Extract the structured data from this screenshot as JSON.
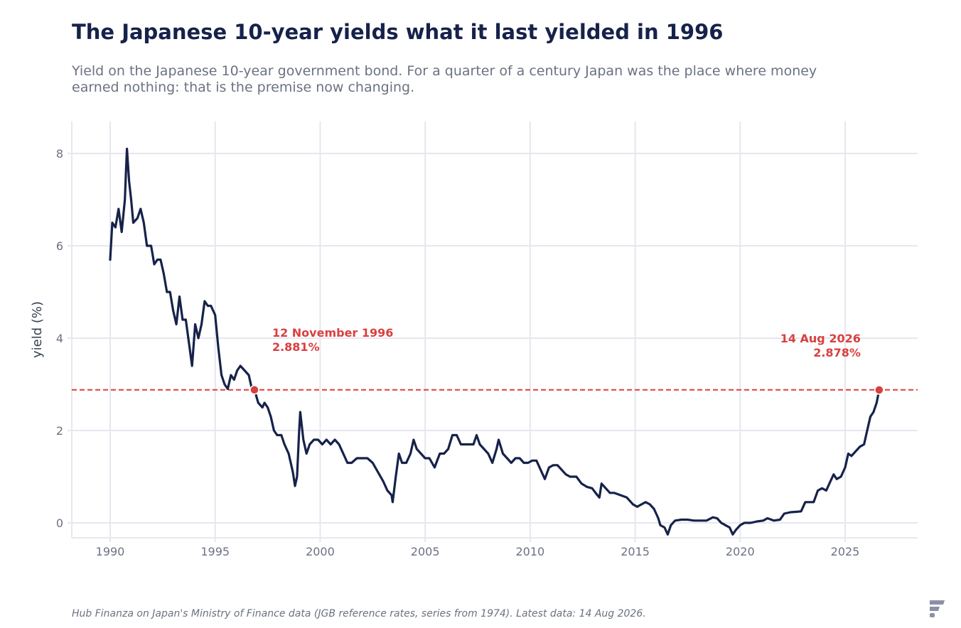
{
  "header": {
    "title": "The Japanese 10-year yields what it last yielded in 1996",
    "subtitle": "Yield on the Japanese 10-year government bond. For a quarter of a century Japan was the place where money earned nothing: that is the premise now changing."
  },
  "footer": {
    "source": "Hub Finanza on Japan's Ministry of Finance data (JGB reference rates, series from 1974). Latest data: 14 Aug 2026."
  },
  "logo": {
    "icon": "hub-finanza-logo-icon",
    "color": "#8b90a6"
  },
  "colors": {
    "line": "#16224a",
    "accent": "#d9403f",
    "grid": "#e6e7ef",
    "text": "#6b7280"
  },
  "chart_data": {
    "type": "line",
    "title": "The Japanese 10-year yields what it last yielded in 1996",
    "xlabel": "",
    "ylabel": "yield (%)",
    "xlim": [
      1988.2,
      2028.5
    ],
    "ylim": [
      -0.3,
      8.7
    ],
    "xticks": [
      1990,
      1995,
      2000,
      2005,
      2010,
      2015,
      2020,
      2025
    ],
    "yticks": [
      0,
      2,
      4,
      6,
      8
    ],
    "grid": true,
    "series": [
      {
        "values": [
          [
            1990.0,
            5.7
          ],
          [
            1990.1,
            6.5
          ],
          [
            1990.25,
            6.4
          ],
          [
            1990.4,
            6.8
          ],
          [
            1990.55,
            6.3
          ],
          [
            1990.7,
            7.0
          ],
          [
            1990.75,
            7.6
          ],
          [
            1990.8,
            8.1
          ],
          [
            1990.9,
            7.4
          ],
          [
            1991.0,
            7.0
          ],
          [
            1991.1,
            6.5
          ],
          [
            1991.3,
            6.6
          ],
          [
            1991.45,
            6.8
          ],
          [
            1991.6,
            6.5
          ],
          [
            1991.75,
            6.0
          ],
          [
            1991.95,
            6.0
          ],
          [
            1992.1,
            5.6
          ],
          [
            1992.25,
            5.7
          ],
          [
            1992.4,
            5.7
          ],
          [
            1992.55,
            5.4
          ],
          [
            1992.7,
            5.0
          ],
          [
            1992.85,
            5.0
          ],
          [
            1993.0,
            4.6
          ],
          [
            1993.15,
            4.3
          ],
          [
            1993.3,
            4.9
          ],
          [
            1993.45,
            4.4
          ],
          [
            1993.6,
            4.4
          ],
          [
            1993.75,
            3.9
          ],
          [
            1993.9,
            3.4
          ],
          [
            1994.05,
            4.3
          ],
          [
            1994.2,
            4.0
          ],
          [
            1994.35,
            4.3
          ],
          [
            1994.5,
            4.8
          ],
          [
            1994.65,
            4.7
          ],
          [
            1994.8,
            4.7
          ],
          [
            1995.0,
            4.5
          ],
          [
            1995.15,
            3.8
          ],
          [
            1995.3,
            3.2
          ],
          [
            1995.45,
            3.0
          ],
          [
            1995.6,
            2.9
          ],
          [
            1995.75,
            3.2
          ],
          [
            1995.9,
            3.1
          ],
          [
            1996.05,
            3.3
          ],
          [
            1996.2,
            3.4
          ],
          [
            1996.4,
            3.3
          ],
          [
            1996.6,
            3.2
          ],
          [
            1996.75,
            2.9
          ],
          [
            1996.87,
            2.881
          ],
          [
            1997.05,
            2.6
          ],
          [
            1997.25,
            2.5
          ],
          [
            1997.35,
            2.6
          ],
          [
            1997.5,
            2.5
          ],
          [
            1997.65,
            2.3
          ],
          [
            1997.8,
            2.0
          ],
          [
            1997.95,
            1.9
          ],
          [
            1998.15,
            1.9
          ],
          [
            1998.3,
            1.7
          ],
          [
            1998.5,
            1.5
          ],
          [
            1998.7,
            1.1
          ],
          [
            1998.8,
            0.8
          ],
          [
            1998.9,
            1.0
          ],
          [
            1999.0,
            2.0
          ],
          [
            1999.05,
            2.4
          ],
          [
            1999.2,
            1.8
          ],
          [
            1999.35,
            1.5
          ],
          [
            1999.5,
            1.7
          ],
          [
            1999.7,
            1.8
          ],
          [
            1999.9,
            1.8
          ],
          [
            2000.1,
            1.7
          ],
          [
            2000.3,
            1.8
          ],
          [
            2000.5,
            1.7
          ],
          [
            2000.7,
            1.8
          ],
          [
            2000.9,
            1.7
          ],
          [
            2001.1,
            1.5
          ],
          [
            2001.3,
            1.3
          ],
          [
            2001.5,
            1.3
          ],
          [
            2001.75,
            1.4
          ],
          [
            2002.0,
            1.4
          ],
          [
            2002.25,
            1.4
          ],
          [
            2002.5,
            1.3
          ],
          [
            2002.75,
            1.1
          ],
          [
            2003.0,
            0.9
          ],
          [
            2003.2,
            0.7
          ],
          [
            2003.4,
            0.6
          ],
          [
            2003.45,
            0.45
          ],
          [
            2003.6,
            1.0
          ],
          [
            2003.75,
            1.5
          ],
          [
            2003.9,
            1.3
          ],
          [
            2004.1,
            1.3
          ],
          [
            2004.3,
            1.5
          ],
          [
            2004.45,
            1.8
          ],
          [
            2004.6,
            1.6
          ],
          [
            2004.8,
            1.5
          ],
          [
            2005.0,
            1.4
          ],
          [
            2005.2,
            1.4
          ],
          [
            2005.45,
            1.2
          ],
          [
            2005.7,
            1.5
          ],
          [
            2005.9,
            1.5
          ],
          [
            2006.1,
            1.6
          ],
          [
            2006.3,
            1.9
          ],
          [
            2006.5,
            1.9
          ],
          [
            2006.7,
            1.7
          ],
          [
            2006.9,
            1.7
          ],
          [
            2007.1,
            1.7
          ],
          [
            2007.3,
            1.7
          ],
          [
            2007.45,
            1.9
          ],
          [
            2007.6,
            1.7
          ],
          [
            2007.8,
            1.6
          ],
          [
            2008.0,
            1.5
          ],
          [
            2008.2,
            1.3
          ],
          [
            2008.4,
            1.6
          ],
          [
            2008.5,
            1.8
          ],
          [
            2008.7,
            1.5
          ],
          [
            2008.9,
            1.4
          ],
          [
            2009.1,
            1.3
          ],
          [
            2009.3,
            1.4
          ],
          [
            2009.5,
            1.4
          ],
          [
            2009.7,
            1.3
          ],
          [
            2009.9,
            1.3
          ],
          [
            2010.1,
            1.35
          ],
          [
            2010.3,
            1.35
          ],
          [
            2010.5,
            1.15
          ],
          [
            2010.7,
            0.95
          ],
          [
            2010.9,
            1.2
          ],
          [
            2011.1,
            1.25
          ],
          [
            2011.3,
            1.25
          ],
          [
            2011.5,
            1.15
          ],
          [
            2011.7,
            1.05
          ],
          [
            2011.9,
            1.0
          ],
          [
            2012.2,
            1.0
          ],
          [
            2012.45,
            0.85
          ],
          [
            2012.7,
            0.78
          ],
          [
            2012.95,
            0.75
          ],
          [
            2013.2,
            0.6
          ],
          [
            2013.3,
            0.55
          ],
          [
            2013.4,
            0.85
          ],
          [
            2013.6,
            0.75
          ],
          [
            2013.8,
            0.65
          ],
          [
            2014.0,
            0.65
          ],
          [
            2014.3,
            0.6
          ],
          [
            2014.6,
            0.55
          ],
          [
            2014.9,
            0.4
          ],
          [
            2015.1,
            0.35
          ],
          [
            2015.3,
            0.4
          ],
          [
            2015.5,
            0.45
          ],
          [
            2015.7,
            0.4
          ],
          [
            2015.9,
            0.3
          ],
          [
            2016.1,
            0.1
          ],
          [
            2016.2,
            -0.05
          ],
          [
            2016.4,
            -0.1
          ],
          [
            2016.55,
            -0.25
          ],
          [
            2016.7,
            -0.05
          ],
          [
            2016.9,
            0.05
          ],
          [
            2017.2,
            0.07
          ],
          [
            2017.5,
            0.07
          ],
          [
            2017.8,
            0.05
          ],
          [
            2018.1,
            0.05
          ],
          [
            2018.4,
            0.05
          ],
          [
            2018.7,
            0.12
          ],
          [
            2018.9,
            0.1
          ],
          [
            2019.1,
            0.0
          ],
          [
            2019.3,
            -0.05
          ],
          [
            2019.5,
            -0.1
          ],
          [
            2019.65,
            -0.25
          ],
          [
            2019.8,
            -0.15
          ],
          [
            2020.0,
            -0.05
          ],
          [
            2020.2,
            0.0
          ],
          [
            2020.5,
            0.0
          ],
          [
            2020.8,
            0.03
          ],
          [
            2021.1,
            0.05
          ],
          [
            2021.3,
            0.1
          ],
          [
            2021.6,
            0.05
          ],
          [
            2021.9,
            0.07
          ],
          [
            2022.1,
            0.2
          ],
          [
            2022.4,
            0.23
          ],
          [
            2022.7,
            0.24
          ],
          [
            2022.9,
            0.25
          ],
          [
            2023.1,
            0.45
          ],
          [
            2023.3,
            0.45
          ],
          [
            2023.5,
            0.45
          ],
          [
            2023.7,
            0.7
          ],
          [
            2023.9,
            0.75
          ],
          [
            2024.1,
            0.7
          ],
          [
            2024.3,
            0.9
          ],
          [
            2024.45,
            1.05
          ],
          [
            2024.6,
            0.95
          ],
          [
            2024.8,
            1.0
          ],
          [
            2025.0,
            1.2
          ],
          [
            2025.15,
            1.5
          ],
          [
            2025.3,
            1.45
          ],
          [
            2025.5,
            1.55
          ],
          [
            2025.7,
            1.65
          ],
          [
            2025.9,
            1.7
          ],
          [
            2026.05,
            2.0
          ],
          [
            2026.2,
            2.3
          ],
          [
            2026.35,
            2.4
          ],
          [
            2026.5,
            2.6
          ],
          [
            2026.62,
            2.878
          ]
        ]
      }
    ],
    "reference_line": {
      "y": 2.881,
      "style": "dashed"
    },
    "annotations": [
      {
        "x": 1996.87,
        "y": 2.881,
        "label_line1": "12 November 1996",
        "label_line2": "2.881%"
      },
      {
        "x": 2026.62,
        "y": 2.878,
        "label_line1": "14 Aug 2026",
        "label_line2": "2.878%"
      }
    ]
  }
}
